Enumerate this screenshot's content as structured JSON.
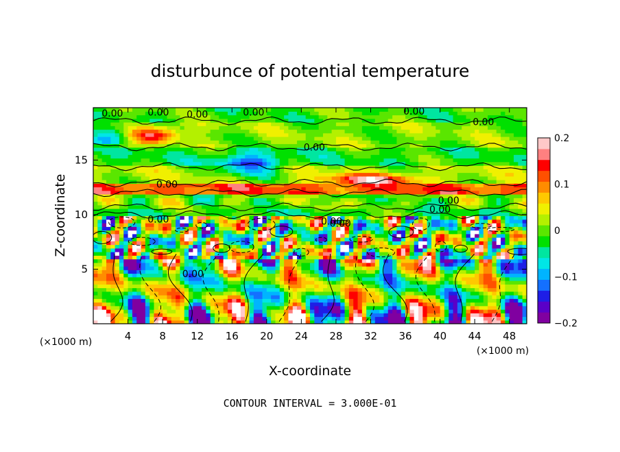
{
  "chart_data": {
    "type": "heatmap",
    "title": "disturbunce of potential temperature",
    "xlabel": "X-coordinate",
    "ylabel": "Z-coordinate",
    "x_unit": "(×1000 m)",
    "z_unit": "(×1000 m)",
    "xlim": [
      0,
      50
    ],
    "ylim": [
      0,
      19.8
    ],
    "x_ticks": [
      4,
      8,
      12,
      16,
      20,
      24,
      28,
      32,
      36,
      40,
      44,
      48
    ],
    "y_ticks": [
      5,
      10,
      15
    ],
    "colorbar": {
      "range": [
        -0.2,
        0.2
      ],
      "ticks": [
        0.2,
        0.1,
        0,
        -0.1,
        -0.2
      ],
      "tick_labels": [
        "0.2",
        "0.1",
        "0",
        "−0.1",
        "−0.2"
      ],
      "colors": [
        "#8000a0",
        "#5a00c8",
        "#1e1ee6",
        "#1470ff",
        "#00b4ff",
        "#00e6e6",
        "#00e6a0",
        "#00e000",
        "#5ae600",
        "#b4f000",
        "#f0f000",
        "#ffc800",
        "#ff8c00",
        "#ff5000",
        "#ff0000",
        "#ff8080",
        "#ffc8c8"
      ]
    },
    "contour_interval": "CONTOUR INTERVAL = 3.000E-01",
    "contour_labels": [
      "0.00",
      "0.00",
      "0.00",
      "0.00",
      "0.00",
      "0.00",
      "0.00",
      "0.00",
      "0.00",
      "0.00",
      "0.00",
      "0.00",
      "0.00",
      "0.00"
    ],
    "grid": false
  }
}
